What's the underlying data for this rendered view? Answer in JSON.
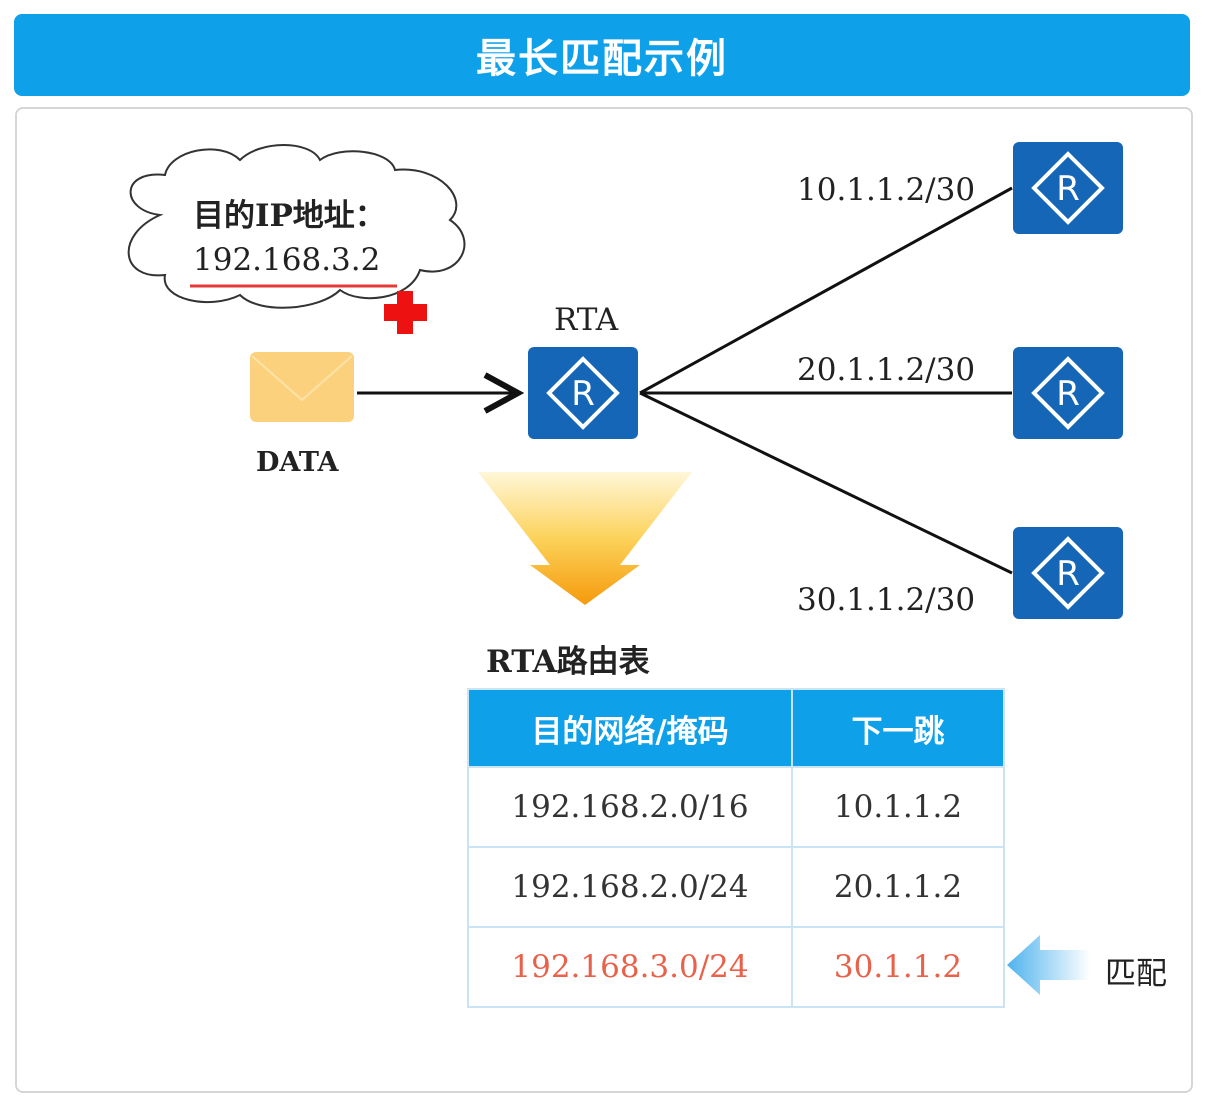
{
  "title": "最长匹配示例",
  "cloud": {
    "label": "目的IP地址：",
    "ip": "192.168.3.2"
  },
  "packet": {
    "label": "DATA"
  },
  "router_main": {
    "label": "RTA"
  },
  "links": [
    {
      "address": "10.1.1.2/30"
    },
    {
      "address": "20.1.1.2/30"
    },
    {
      "address": "30.1.1.2/30"
    }
  ],
  "table": {
    "caption": "RTA路由表",
    "headers": [
      "目的网络/掩码",
      "下一跳"
    ],
    "rows": [
      [
        "192.168.2.0/16",
        "10.1.1.2"
      ],
      [
        "192.168.2.0/24",
        "20.1.1.2"
      ],
      [
        "192.168.3.0/24",
        "30.1.1.2"
      ]
    ]
  },
  "match_label": "匹配",
  "colors": {
    "accent": "#0ea0e8",
    "router": "#1666b7",
    "match": "#e8614a",
    "packet": "#fbd17e"
  }
}
